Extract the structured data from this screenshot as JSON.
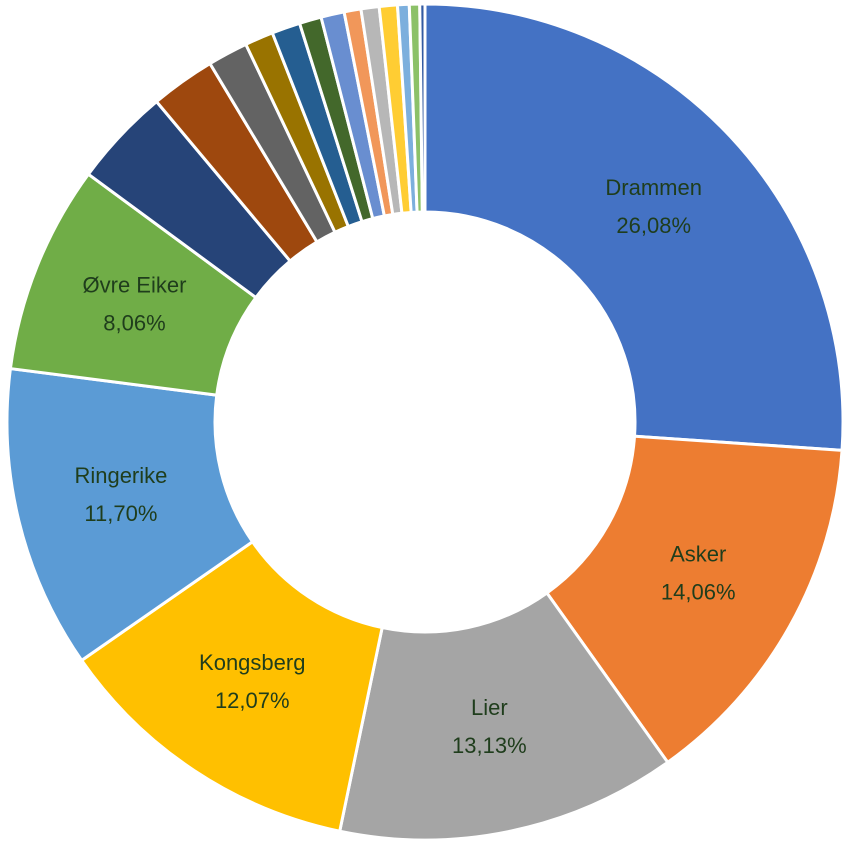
{
  "chart_data": {
    "type": "donut",
    "categories": [
      "Drammen",
      "Asker",
      "Lier",
      "Kongsberg",
      "Ringerike",
      "Øvre Eiker",
      null,
      null,
      null,
      null,
      null,
      null,
      null,
      null,
      null,
      null,
      null,
      null,
      null
    ],
    "values": [
      26.08,
      14.06,
      13.13,
      12.07,
      11.7,
      8.06,
      3.8,
      2.5,
      1.55,
      1.1,
      1.1,
      0.85,
      0.9,
      0.65,
      0.7,
      0.7,
      0.45,
      0.4,
      0.2
    ],
    "value_labels": [
      "26,08%",
      "14,06%",
      "13,13%",
      "12,07%",
      "11,70%",
      "8,06%",
      null,
      null,
      null,
      null,
      null,
      null,
      null,
      null,
      null,
      null,
      null,
      null,
      null
    ],
    "colors": [
      "#4472c4",
      "#ed7d31",
      "#a5a5a5",
      "#ffc000",
      "#5b9bd5",
      "#70ad47",
      "#264478",
      "#9e480e",
      "#636363",
      "#997300",
      "#255e91",
      "#43682b",
      "#698ed0",
      "#f1975a",
      "#b7b7b7",
      "#ffcd33",
      "#7cafdd",
      "#8cc168",
      "#335aa1"
    ]
  }
}
